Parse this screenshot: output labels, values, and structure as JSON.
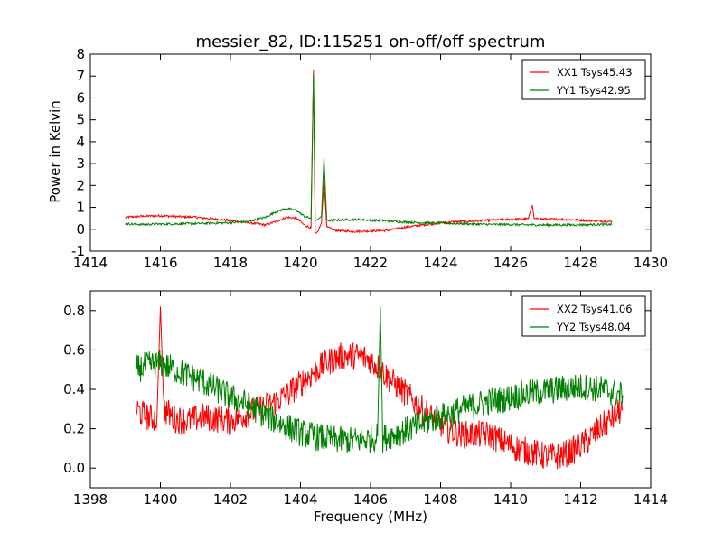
{
  "chart_data": [
    {
      "type": "line",
      "title": "messier_82, ID:115251 on-off/off spectrum",
      "xlabel": "",
      "ylabel": "Power in Kelvin",
      "xlim": [
        1414,
        1430
      ],
      "ylim": [
        -1,
        8
      ],
      "xticks": [
        1414,
        1416,
        1418,
        1420,
        1422,
        1424,
        1426,
        1428,
        1430
      ],
      "yticks": [
        -1,
        0,
        1,
        2,
        3,
        4,
        5,
        6,
        7,
        8
      ],
      "grid": false,
      "legend_position": "top-right",
      "series": [
        {
          "name": "XX1 Tsys45.43",
          "color": "#ff0000",
          "x": [
            1415.0,
            1415.5,
            1416.0,
            1416.5,
            1417.0,
            1417.5,
            1418.0,
            1418.5,
            1419.0,
            1419.3,
            1419.6,
            1419.9,
            1420.1,
            1420.3,
            1420.37,
            1420.42,
            1420.5,
            1420.6,
            1420.67,
            1420.75,
            1421.0,
            1421.5,
            1422.0,
            1422.5,
            1423.0,
            1423.5,
            1424.0,
            1424.5,
            1425.0,
            1425.5,
            1426.0,
            1426.5,
            1426.62,
            1426.67,
            1426.72,
            1427.0,
            1427.5,
            1428.0,
            1428.5,
            1428.9
          ],
          "values": [
            0.55,
            0.6,
            0.62,
            0.58,
            0.55,
            0.48,
            0.4,
            0.3,
            0.2,
            0.35,
            0.55,
            0.5,
            0.2,
            0.05,
            7.25,
            -0.2,
            -0.1,
            0.3,
            2.3,
            0.1,
            -0.05,
            -0.1,
            -0.08,
            -0.05,
            0.1,
            0.2,
            0.3,
            0.35,
            0.38,
            0.42,
            0.45,
            0.48,
            1.1,
            0.5,
            0.48,
            0.47,
            0.45,
            0.42,
            0.38,
            0.35
          ]
        },
        {
          "name": "YY1 Tsys42.95",
          "color": "#008000",
          "x": [
            1415.0,
            1415.5,
            1416.0,
            1416.5,
            1417.0,
            1417.5,
            1418.0,
            1418.5,
            1419.0,
            1419.3,
            1419.6,
            1419.9,
            1420.1,
            1420.3,
            1420.37,
            1420.42,
            1420.5,
            1420.6,
            1420.67,
            1420.75,
            1421.0,
            1421.5,
            1422.0,
            1422.5,
            1423.0,
            1423.5,
            1424.0,
            1424.5,
            1425.0,
            1425.5,
            1426.0,
            1426.5,
            1427.0,
            1427.5,
            1428.0,
            1428.5,
            1428.9
          ],
          "values": [
            0.25,
            0.22,
            0.24,
            0.25,
            0.26,
            0.28,
            0.3,
            0.35,
            0.55,
            0.8,
            0.95,
            0.85,
            0.6,
            0.5,
            7.1,
            0.4,
            0.45,
            0.6,
            3.3,
            0.4,
            0.42,
            0.45,
            0.42,
            0.38,
            0.33,
            0.3,
            0.28,
            0.26,
            0.24,
            0.22,
            0.22,
            0.2,
            0.2,
            0.2,
            0.21,
            0.22,
            0.22
          ]
        }
      ]
    },
    {
      "type": "line",
      "title": "",
      "xlabel": "Frequency (MHz)",
      "ylabel": "",
      "xlim": [
        1398,
        1414
      ],
      "ylim": [
        -0.1,
        0.9
      ],
      "xticks": [
        1398,
        1400,
        1402,
        1404,
        1406,
        1408,
        1410,
        1412,
        1414
      ],
      "yticks": [
        0.0,
        0.2,
        0.4,
        0.6,
        0.8
      ],
      "ytick_labels": [
        "0.0",
        "0.2",
        "0.4",
        "0.6",
        "0.8"
      ],
      "grid": false,
      "legend_position": "top-right",
      "series": [
        {
          "name": "XX2 Tsys41.06",
          "color": "#ff0000",
          "x": [
            1399.3,
            1399.6,
            1399.9,
            1400.0,
            1400.1,
            1400.4,
            1400.8,
            1401.2,
            1401.6,
            1402.0,
            1402.4,
            1402.8,
            1403.2,
            1403.6,
            1404.0,
            1404.4,
            1404.8,
            1405.2,
            1405.6,
            1406.0,
            1406.3,
            1406.6,
            1407.0,
            1407.4,
            1407.8,
            1408.2,
            1408.6,
            1409.0,
            1409.4,
            1409.8,
            1410.2,
            1410.6,
            1411.0,
            1411.4,
            1411.8,
            1412.2,
            1412.6,
            1413.0,
            1413.2
          ],
          "values": [
            0.3,
            0.26,
            0.25,
            0.82,
            0.3,
            0.25,
            0.24,
            0.26,
            0.25,
            0.24,
            0.27,
            0.3,
            0.33,
            0.37,
            0.43,
            0.49,
            0.54,
            0.57,
            0.57,
            0.55,
            0.5,
            0.44,
            0.38,
            0.31,
            0.25,
            0.2,
            0.17,
            0.17,
            0.17,
            0.13,
            0.1,
            0.08,
            0.06,
            0.06,
            0.09,
            0.14,
            0.21,
            0.27,
            0.3
          ]
        },
        {
          "name": "YY2 Tsys48.04",
          "color": "#008000",
          "x": [
            1399.3,
            1399.6,
            1400.0,
            1400.4,
            1400.8,
            1401.2,
            1401.6,
            1402.0,
            1402.4,
            1402.8,
            1403.2,
            1403.6,
            1404.0,
            1404.4,
            1404.8,
            1405.2,
            1405.6,
            1406.0,
            1406.2,
            1406.28,
            1406.35,
            1406.6,
            1407.0,
            1407.4,
            1407.8,
            1408.2,
            1408.6,
            1409.0,
            1409.4,
            1409.8,
            1410.2,
            1410.6,
            1411.0,
            1411.4,
            1411.8,
            1412.2,
            1412.6,
            1413.0,
            1413.2
          ],
          "values": [
            0.5,
            0.52,
            0.53,
            0.5,
            0.47,
            0.44,
            0.4,
            0.36,
            0.33,
            0.29,
            0.25,
            0.21,
            0.18,
            0.16,
            0.15,
            0.14,
            0.14,
            0.15,
            0.16,
            0.82,
            0.15,
            0.17,
            0.19,
            0.22,
            0.25,
            0.27,
            0.3,
            0.32,
            0.34,
            0.35,
            0.37,
            0.38,
            0.39,
            0.4,
            0.41,
            0.41,
            0.4,
            0.38,
            0.37
          ]
        }
      ]
    }
  ]
}
